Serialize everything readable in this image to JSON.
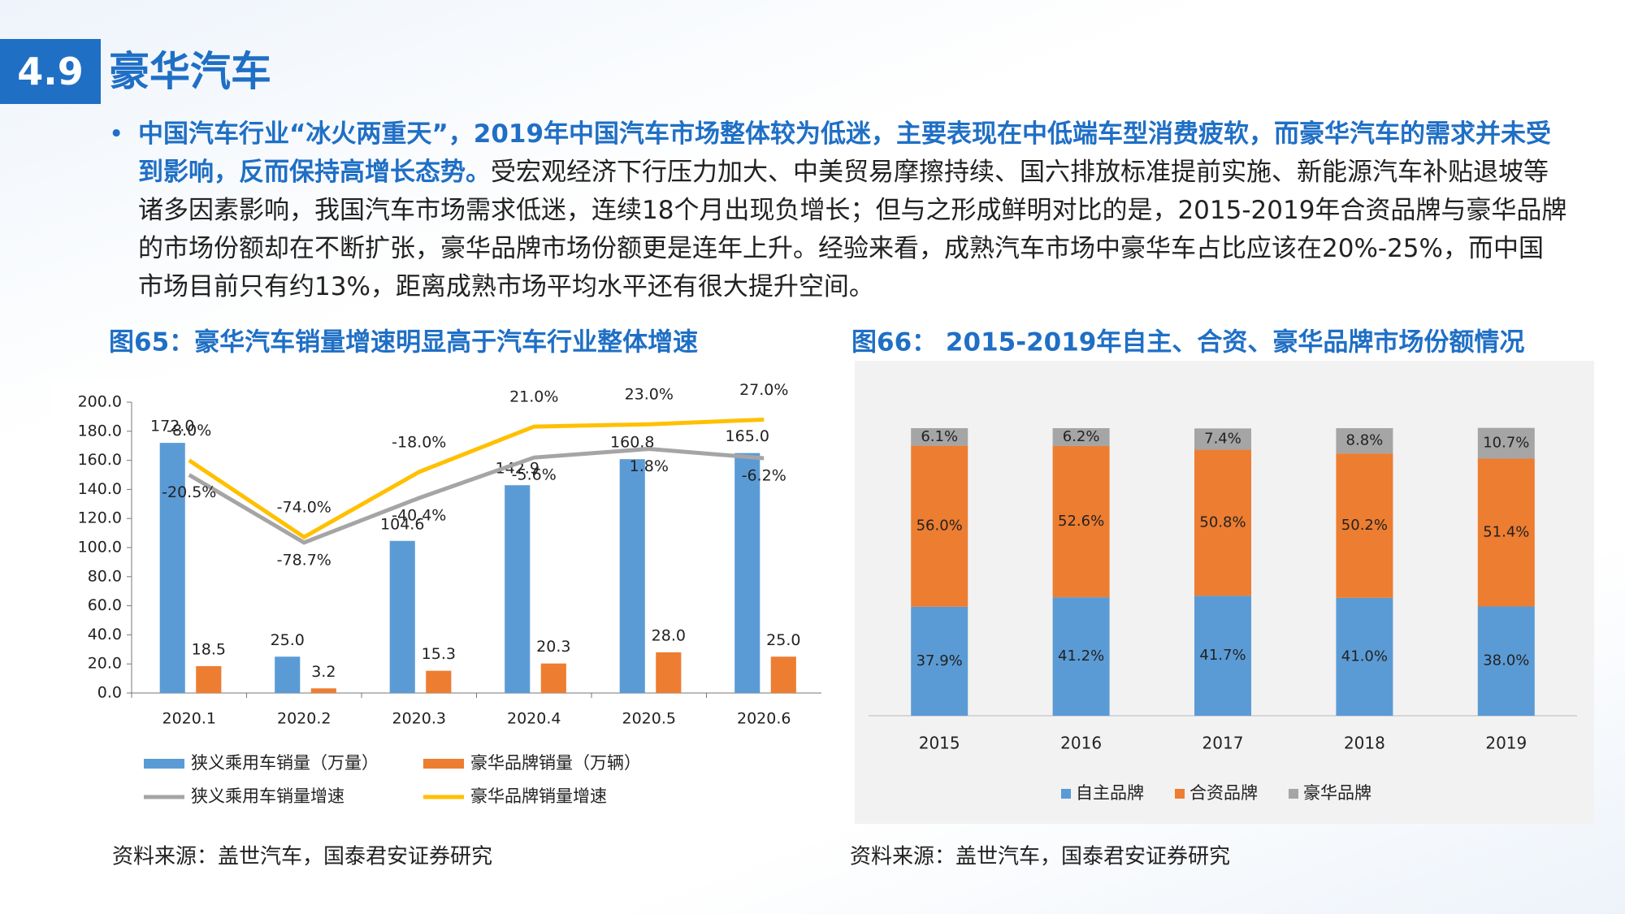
{
  "header": {
    "number": "4.9",
    "title": "豪华汽车"
  },
  "paragraph": {
    "bold": "中国汽车行业“冰火两重天”，2019年中国汽车市场整体较为低迷，主要表现在中低端车型消费疲软，而豪华汽车的需求并未受到影响，反而保持高增长态势。",
    "text": "受宏观经济下行压力加大、中美贸易摩擦持续、国六排放标准提前实施、新能源汽车补贴退坡等诸多因素影响，我国汽车市场需求低迷，连续18个月出现负增长；但与之形成鲜明对比的是，2015-2019年合资品牌与豪华品牌的市场份额却在不断扩张，豪华品牌市场份额更是连年上升。经验来看，成熟汽车市场中豪华车占比应该在20%-25%，而中国市场目前只有约13%，距离成熟市场平均水平还有很大提升空间。"
  },
  "chart_data": [
    {
      "type": "bar",
      "title": "图65：豪华汽车销量增速明显高于汽车行业整体增速",
      "source": "资料来源：盖世汽车，国泰君安证券研究",
      "categories": [
        "2020.1",
        "2020.2",
        "2020.3",
        "2020.4",
        "2020.5",
        "2020.6"
      ],
      "series": [
        {
          "name": "狭义乘用车销量（万量）",
          "type": "bar",
          "color": "#5b9bd5",
          "values": [
            172.0,
            25.0,
            104.6,
            142.9,
            160.8,
            165.0
          ],
          "value_labels": [
            "172.0",
            "25.0",
            "104.6",
            "142.9",
            "160.8",
            "165.0"
          ]
        },
        {
          "name": "豪华品牌销量（万辆）",
          "type": "bar",
          "color": "#ed7d31",
          "values": [
            18.5,
            3.2,
            15.3,
            20.3,
            28.0,
            25.0
          ],
          "value_labels": [
            "18.5",
            "3.2",
            "15.3",
            "20.3",
            "28.0",
            "25.0"
          ]
        },
        {
          "name": "狭义乘用车销量增速",
          "type": "line",
          "axis": "y2",
          "color": "#a5a5a5",
          "values": [
            -20.5,
            -78.7,
            -40.4,
            -5.6,
            1.8,
            -6.2
          ],
          "value_labels": [
            "-20.5%",
            "-78.7%",
            "-40.4%",
            "-5.6%",
            "1.8%",
            "-6.2%"
          ]
        },
        {
          "name": "豪华品牌销量增速",
          "type": "line",
          "axis": "y2",
          "color": "#ffc000",
          "values": [
            -8.0,
            -74.0,
            -18.0,
            21.0,
            23.0,
            27.0
          ],
          "value_labels": [
            "-8.0%",
            "-74.0%",
            "-18.0%",
            "21.0%",
            "23.0%",
            "27.0%"
          ]
        }
      ],
      "ylim": [
        0,
        200
      ],
      "yticks": [
        {
          "value": 0,
          "label": "0.0"
        },
        {
          "value": 20,
          "label": "20.0"
        },
        {
          "value": 40,
          "label": "40.0"
        },
        {
          "value": 60,
          "label": "60.0"
        },
        {
          "value": 80,
          "label": "80.0"
        },
        {
          "value": 100,
          "label": "100.0"
        },
        {
          "value": 120,
          "label": "120.0"
        },
        {
          "value": 140,
          "label": "140.0"
        },
        {
          "value": 160,
          "label": "160.0"
        },
        {
          "value": 180,
          "label": "180.0"
        },
        {
          "value": 200,
          "label": "200.0"
        }
      ],
      "y2lim": [
        -208,
        42
      ],
      "legend": "bottom"
    },
    {
      "type": "stacked-bar",
      "title": "图66： 2015-2019年自主、合资、豪华品牌市场份额情况",
      "source": "资料来源：盖世汽车，国泰君安证券研究",
      "categories": [
        "2015",
        "2016",
        "2017",
        "2018",
        "2019"
      ],
      "series": [
        {
          "name": "自主品牌",
          "color": "#5b9bd5",
          "values": [
            37.9,
            41.2,
            41.7,
            41.0,
            38.0
          ],
          "value_labels": [
            "37.9%",
            "41.2%",
            "41.7%",
            "41.0%",
            "38.0%"
          ]
        },
        {
          "name": "合资品牌",
          "color": "#ed7d31",
          "values": [
            56.0,
            52.6,
            50.8,
            50.2,
            51.4
          ],
          "value_labels": [
            "56.0%",
            "52.6%",
            "50.8%",
            "50.2%",
            "51.4%"
          ]
        },
        {
          "name": "豪华品牌",
          "color": "#a5a5a5",
          "values": [
            6.1,
            6.2,
            7.4,
            8.8,
            10.7
          ],
          "value_labels": [
            "6.1%",
            "6.2%",
            "7.4%",
            "8.8%",
            "10.7%"
          ]
        }
      ],
      "ylim": [
        0,
        100
      ],
      "legend": "bottom"
    }
  ]
}
